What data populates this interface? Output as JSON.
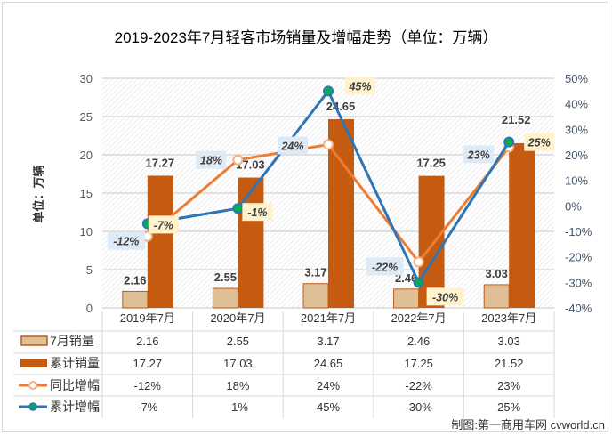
{
  "chart_data": {
    "type": "bar+line",
    "title": "2019-2023年7月轻客市场销量及增幅走势（单位：万辆）",
    "ylabel": "单位：万辆",
    "ylim": [
      0,
      30
    ],
    "y_ticks": [
      "0",
      "5",
      "10",
      "15",
      "20",
      "25",
      "30"
    ],
    "y2lim": [
      -40,
      50
    ],
    "y2_ticks": [
      "-40%",
      "-30%",
      "-20%",
      "-10%",
      "0%",
      "10%",
      "20%",
      "30%",
      "40%",
      "50%"
    ],
    "categories": [
      "2019年7月",
      "2020年7月",
      "2021年7月",
      "2022年7月",
      "2023年7月"
    ],
    "series": [
      {
        "name": "7月销量",
        "kind": "bar",
        "axis": "left",
        "values": [
          2.16,
          2.55,
          3.17,
          2.46,
          3.03
        ],
        "labels": [
          "2.16",
          "2.55",
          "3.17",
          "2.46",
          "3.03"
        ],
        "table": [
          "2.16",
          "2.55",
          "3.17",
          "2.46",
          "3.03"
        ]
      },
      {
        "name": "累计销量",
        "kind": "bar",
        "axis": "left",
        "values": [
          17.27,
          17.03,
          24.65,
          17.25,
          21.52
        ],
        "labels": [
          "17.27",
          "17.03",
          "24.65",
          "17.25",
          "21.52"
        ],
        "table": [
          "17.27",
          "17.03",
          "24.65",
          "17.25",
          "21.52"
        ]
      },
      {
        "name": "同比增幅",
        "kind": "line",
        "axis": "right",
        "values": [
          -12,
          18,
          24,
          -22,
          23
        ],
        "labels": [
          "-12%",
          "18%",
          "24%",
          "-22%",
          "23%"
        ],
        "table": [
          "-12%",
          "18%",
          "24%",
          "-22%",
          "23%"
        ]
      },
      {
        "name": "累计增幅",
        "kind": "line",
        "axis": "right",
        "values": [
          -7,
          -1,
          45,
          -30,
          25
        ],
        "labels": [
          "-7%",
          "-1%",
          "45%",
          "-30%",
          "25%"
        ],
        "table": [
          "-7%",
          "-1%",
          "45%",
          "-30%",
          "25%"
        ]
      }
    ],
    "grid": true,
    "legend": "data-table-bottom",
    "source": "制图:第一商用车网 cvworld.cn"
  },
  "colors": {
    "bar1": "#dfc096",
    "bar1_border": "#c55a11",
    "bar2": "#c55a11",
    "line1": "#ed7d31",
    "line1_marker": "#f4b183",
    "line2": "#2e75b6",
    "line2_marker": "#00b050",
    "label_blue": "#deebf7",
    "label_yellow": "#fff2cc",
    "axis_text": "#44546a"
  }
}
